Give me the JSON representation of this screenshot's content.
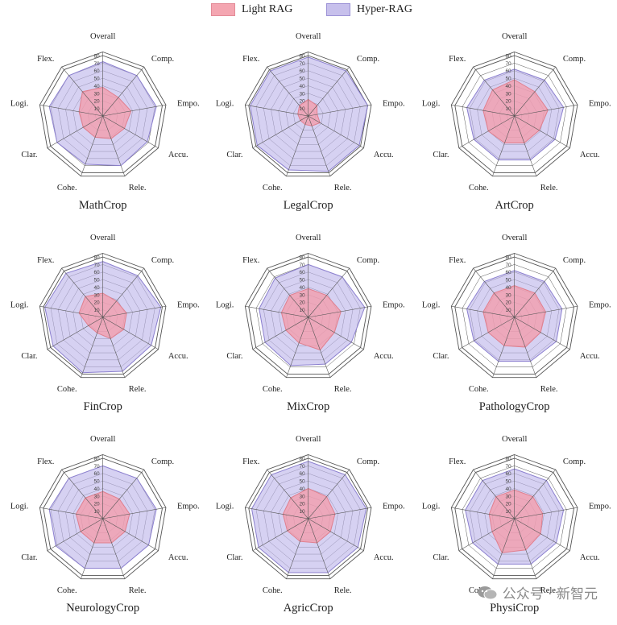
{
  "legend": [
    {
      "name": "Light RAG",
      "fill": "#f4a6b1",
      "stroke": "#e38b97"
    },
    {
      "name": "Hyper-RAG",
      "fill": "#c7c0ec",
      "stroke": "#9c92d6"
    }
  ],
  "colors": {
    "light_fill": "#f49aa8",
    "light_stroke": "#e07f8e",
    "hyper_fill": "#bdb5ea",
    "hyper_stroke": "#8c80cf",
    "grid": "#555555",
    "text": "#222222"
  },
  "watermark": {
    "text": "公众号 · 新智元",
    "icon": "wechat-icon"
  },
  "chart_data": [
    {
      "type": "radar",
      "title": "MathCrop",
      "axes": [
        "Overall",
        "Comp.",
        "Empo.",
        "Accu.",
        "Rele.",
        "Cohe.",
        "Clar.",
        "Logi.",
        "Flex."
      ],
      "rlim": [
        0,
        80
      ],
      "ticks": [
        0,
        10,
        20,
        30,
        40,
        50,
        60,
        70,
        80
      ],
      "series": [
        {
          "name": "Light RAG",
          "values": [
            38,
            32,
            38,
            33,
            32,
            30,
            30,
            32,
            42
          ]
        },
        {
          "name": "Hyper-RAG",
          "values": [
            72,
            70,
            72,
            68,
            70,
            68,
            70,
            72,
            70
          ]
        }
      ]
    },
    {
      "type": "radar",
      "title": "LegalCrop",
      "axes": [
        "Overall",
        "Comp.",
        "Empo.",
        "Accu.",
        "Rele.",
        "Cohe.",
        "Clar.",
        "Logi.",
        "Flex."
      ],
      "rlim": [
        0,
        80
      ],
      "ticks": [
        0,
        10,
        20,
        30,
        40,
        50,
        60,
        70,
        80
      ],
      "series": [
        {
          "name": "Light RAG",
          "values": [
            22,
            18,
            12,
            18,
            14,
            12,
            12,
            14,
            18
          ]
        },
        {
          "name": "Hyper-RAG",
          "values": [
            78,
            78,
            80,
            78,
            78,
            76,
            78,
            78,
            78
          ]
        }
      ]
    },
    {
      "type": "radar",
      "title": "ArtCrop",
      "axes": [
        "Overall",
        "Comp.",
        "Empo.",
        "Accu.",
        "Rele.",
        "Cohe.",
        "Clar.",
        "Logi.",
        "Flex."
      ],
      "rlim": [
        0,
        80
      ],
      "ticks": [
        0,
        10,
        20,
        30,
        40,
        50,
        60,
        70,
        80
      ],
      "series": [
        {
          "name": "Light RAG",
          "values": [
            48,
            42,
            45,
            38,
            38,
            38,
            40,
            42,
            45
          ]
        },
        {
          "name": "Hyper-RAG",
          "values": [
            62,
            62,
            66,
            62,
            62,
            62,
            62,
            64,
            62
          ]
        }
      ]
    },
    {
      "type": "radar",
      "title": "FinCrop",
      "axes": [
        "Overall",
        "Comp.",
        "Empo.",
        "Accu.",
        "Rele.",
        "Cohe.",
        "Clar.",
        "Logi.",
        "Flex."
      ],
      "rlim": [
        0,
        80
      ],
      "ticks": [
        0,
        10,
        20,
        30,
        40,
        50,
        60,
        70,
        80
      ],
      "series": [
        {
          "name": "Light RAG",
          "values": [
            32,
            28,
            32,
            32,
            30,
            22,
            22,
            32,
            36
          ]
        },
        {
          "name": "Hyper-RAG",
          "values": [
            74,
            72,
            78,
            74,
            76,
            78,
            76,
            78,
            76
          ]
        }
      ]
    },
    {
      "type": "radar",
      "title": "MixCrop",
      "axes": [
        "Overall",
        "Comp.",
        "Empo.",
        "Accu.",
        "Rele.",
        "Cohe.",
        "Clar.",
        "Logi.",
        "Flex."
      ],
      "rlim": [
        0,
        80
      ],
      "ticks": [
        0,
        10,
        20,
        30,
        40,
        50,
        60,
        70,
        80
      ],
      "series": [
        {
          "name": "Light RAG",
          "values": [
            38,
            38,
            44,
            40,
            46,
            36,
            34,
            36,
            38
          ]
        },
        {
          "name": "Hyper-RAG",
          "values": [
            70,
            70,
            76,
            66,
            66,
            68,
            66,
            66,
            68
          ]
        }
      ]
    },
    {
      "type": "radar",
      "title": "PathologyCrop",
      "axes": [
        "Overall",
        "Comp.",
        "Empo.",
        "Accu.",
        "Rele.",
        "Cohe.",
        "Clar.",
        "Logi.",
        "Flex."
      ],
      "rlim": [
        0,
        80
      ],
      "ticks": [
        0,
        10,
        20,
        30,
        40,
        50,
        60,
        70,
        80
      ],
      "series": [
        {
          "name": "Light RAG",
          "values": [
            42,
            42,
            42,
            40,
            42,
            40,
            40,
            42,
            42
          ]
        },
        {
          "name": "Hyper-RAG",
          "values": [
            62,
            62,
            64,
            64,
            62,
            62,
            62,
            64,
            62
          ]
        }
      ]
    },
    {
      "type": "radar",
      "title": "NeurologyCrop",
      "axes": [
        "Overall",
        "Comp.",
        "Empo.",
        "Accu.",
        "Rele.",
        "Cohe.",
        "Clar.",
        "Logi.",
        "Flex."
      ],
      "rlim": [
        0,
        80
      ],
      "ticks": [
        0,
        10,
        20,
        30,
        40,
        50,
        60,
        70,
        80
      ],
      "series": [
        {
          "name": "Light RAG",
          "values": [
            36,
            34,
            36,
            34,
            34,
            34,
            34,
            36,
            36
          ]
        },
        {
          "name": "Hyper-RAG",
          "values": [
            70,
            70,
            72,
            70,
            70,
            70,
            72,
            72,
            70
          ]
        }
      ]
    },
    {
      "type": "radar",
      "title": "AgricCrop",
      "axes": [
        "Overall",
        "Comp.",
        "Empo.",
        "Accu.",
        "Rele.",
        "Cohe.",
        "Clar.",
        "Logi.",
        "Flex."
      ],
      "rlim": [
        0,
        80
      ],
      "ticks": [
        0,
        10,
        20,
        30,
        40,
        50,
        60,
        70,
        80
      ],
      "series": [
        {
          "name": "Light RAG",
          "values": [
            40,
            38,
            36,
            34,
            34,
            32,
            32,
            34,
            36
          ]
        },
        {
          "name": "Hyper-RAG",
          "values": [
            76,
            76,
            78,
            76,
            76,
            76,
            76,
            76,
            76
          ]
        }
      ]
    },
    {
      "type": "radar",
      "title": "PhysiCrop",
      "axes": [
        "Overall",
        "Comp.",
        "Empo.",
        "Accu.",
        "Rele.",
        "Cohe.",
        "Clar.",
        "Logi.",
        "Flex."
      ],
      "rlim": [
        0,
        80
      ],
      "ticks": [
        0,
        10,
        20,
        30,
        40,
        50,
        60,
        70,
        80
      ],
      "series": [
        {
          "name": "Light RAG",
          "values": [
            38,
            38,
            38,
            40,
            44,
            48,
            34,
            34,
            38
          ]
        },
        {
          "name": "Hyper-RAG",
          "values": [
            66,
            66,
            66,
            64,
            64,
            64,
            64,
            66,
            66
          ]
        }
      ]
    }
  ]
}
